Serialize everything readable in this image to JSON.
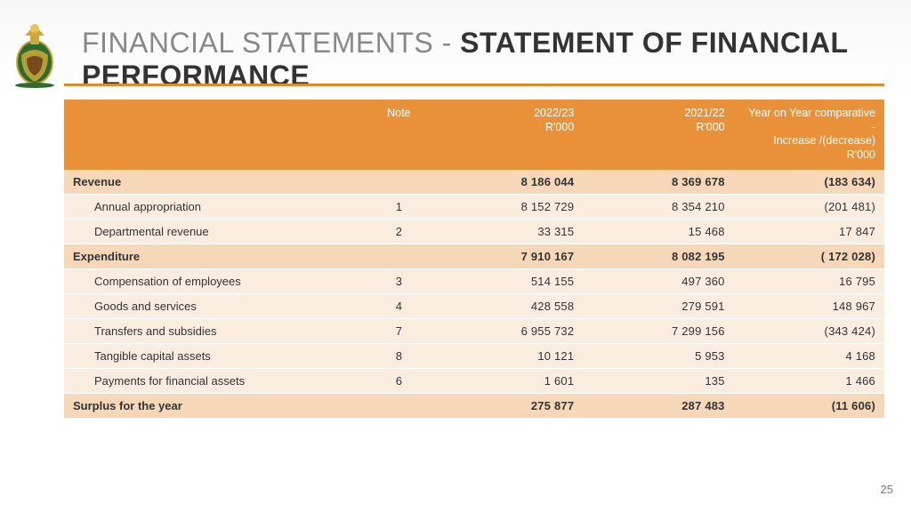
{
  "title_light": "FINANCIAL STATEMENTS - ",
  "title_bold": "STATEMENT OF FINANCIAL PERFORMANCE",
  "page_number": "25",
  "colors": {
    "header_bg": "#e99139",
    "header_text": "#ffffff",
    "row_main_bg": "#f6d8b9",
    "row_sub_bg": "#fbece0",
    "rule": "#e08a2e",
    "title_light": "#888888",
    "title_bold": "#333333"
  },
  "columns": {
    "label": "",
    "note": "Note",
    "y2022": "2022/23\nR'000",
    "y2021": "2021/22\nR'000",
    "yoy": "Year on Year comparative -\nIncrease /(decrease)\nR'000"
  },
  "rows": [
    {
      "type": "main",
      "label": "Revenue",
      "note": "",
      "y2022": "8 186 044",
      "y2021": "8 369 678",
      "yoy": "(183 634)"
    },
    {
      "type": "sub",
      "label": "Annual appropriation",
      "note": "1",
      "y2022": "8 152 729",
      "y2021": "8 354 210",
      "yoy": "(201 481)"
    },
    {
      "type": "sub",
      "label": "Departmental revenue",
      "note": "2",
      "y2022": "33 315",
      "y2021": "15 468",
      "yoy": "17 847"
    },
    {
      "type": "main",
      "label": "Expenditure",
      "note": "",
      "y2022": "7 910 167",
      "y2021": "8 082 195",
      "yoy": "( 172 028)"
    },
    {
      "type": "sub",
      "label": "Compensation of employees",
      "note": "3",
      "y2022": "514 155",
      "y2021": "497 360",
      "yoy": "16 795"
    },
    {
      "type": "sub",
      "label": "Goods and services",
      "note": "4",
      "y2022": "428 558",
      "y2021": "279 591",
      "yoy": "148 967"
    },
    {
      "type": "sub",
      "label": "Transfers and subsidies",
      "note": "7",
      "y2022": "6 955 732",
      "y2021": "7 299 156",
      "yoy": "(343 424)"
    },
    {
      "type": "sub",
      "label": "Tangible capital assets",
      "note": "8",
      "y2022": "10 121",
      "y2021": "5 953",
      "yoy": "4 168"
    },
    {
      "type": "sub",
      "label": "Payments for financial assets",
      "note": "6",
      "y2022": "1 601",
      "y2021": "135",
      "yoy": "1 466"
    },
    {
      "type": "main",
      "label": "Surplus for the year",
      "note": "",
      "y2022": "275 877",
      "y2021": "287 483",
      "yoy": "(11 606)"
    }
  ]
}
